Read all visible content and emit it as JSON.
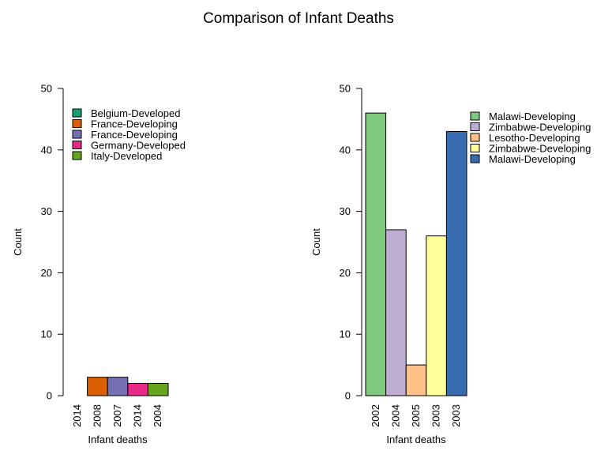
{
  "title": "Comparison of Infant Deaths",
  "chart_data": [
    {
      "type": "bar",
      "xlabel": "Infant deaths",
      "ylabel": "Count",
      "ylim": [
        0,
        50
      ],
      "yticks": [
        0,
        10,
        20,
        30,
        40,
        50
      ],
      "categories": [
        "2014",
        "2008",
        "2007",
        "2014",
        "2004"
      ],
      "values": [
        0,
        3,
        3,
        2,
        2
      ],
      "colors": [
        "#1b9e77",
        "#d95f02",
        "#7570b3",
        "#e7298a",
        "#66a61e"
      ],
      "legend": [
        "Belgium-Developed",
        "France-Developing",
        "France-Developing",
        "Germany-Developed",
        "Italy-Developed"
      ]
    },
    {
      "type": "bar",
      "xlabel": "Infant deaths",
      "ylabel": "Count",
      "ylim": [
        0,
        50
      ],
      "yticks": [
        0,
        10,
        20,
        30,
        40,
        50
      ],
      "categories": [
        "2002",
        "2004",
        "2005",
        "2003",
        "2003"
      ],
      "values": [
        46,
        27,
        5,
        26,
        43
      ],
      "colors": [
        "#7fc97f",
        "#beaed4",
        "#fdc086",
        "#ffff99",
        "#386cb0"
      ],
      "legend": [
        "Malawi-Developing",
        "Zimbabwe-Developing",
        "Lesotho-Developing",
        "Zimbabwe-Developing",
        "Malawi-Developing"
      ]
    }
  ]
}
